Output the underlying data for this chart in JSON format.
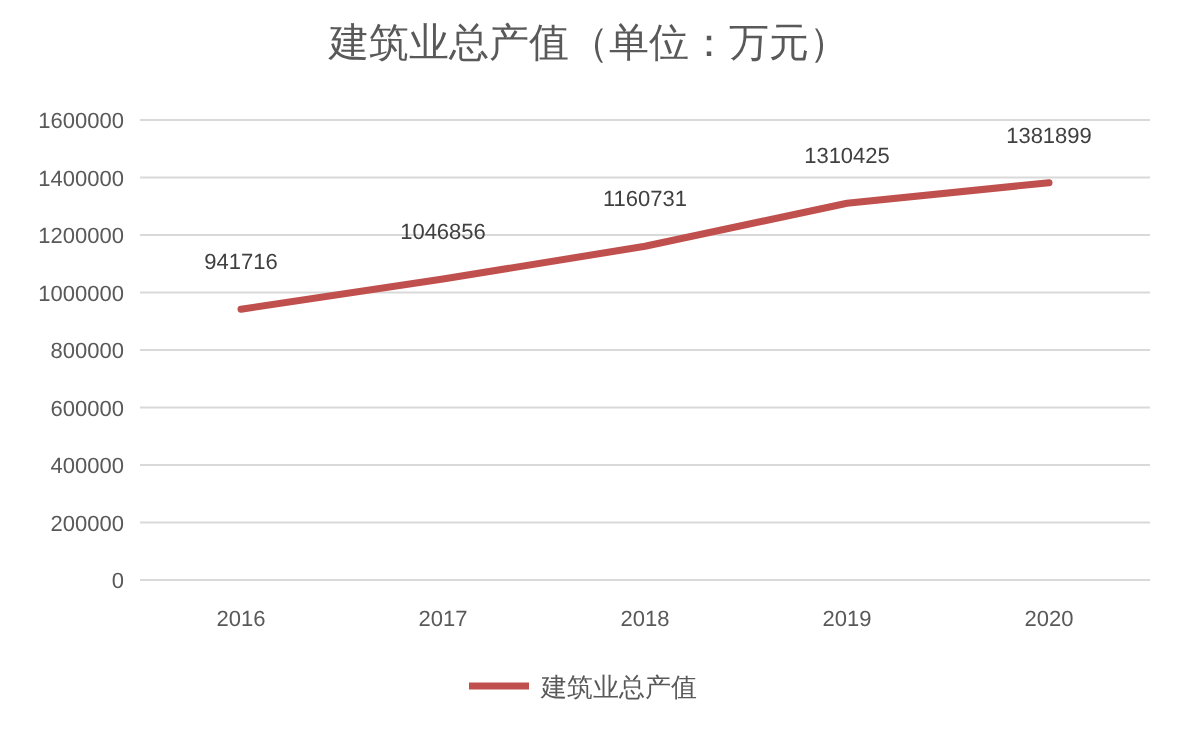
{
  "chart_data": {
    "type": "line",
    "title": "建筑业总产值（单位：万元）",
    "categories": [
      "2016",
      "2017",
      "2018",
      "2019",
      "2020"
    ],
    "series": [
      {
        "name": "建筑业总产值",
        "color": "#c0504d",
        "values": [
          941716,
          1046856,
          1160731,
          1310425,
          1381899
        ]
      }
    ],
    "ylim": [
      0,
      1600000
    ],
    "yticks": [
      0,
      200000,
      400000,
      600000,
      800000,
      1000000,
      1200000,
      1400000,
      1600000
    ],
    "grid": "y",
    "legend": "bottom",
    "data_labels": true,
    "marker": "none",
    "line_style": "solid"
  }
}
